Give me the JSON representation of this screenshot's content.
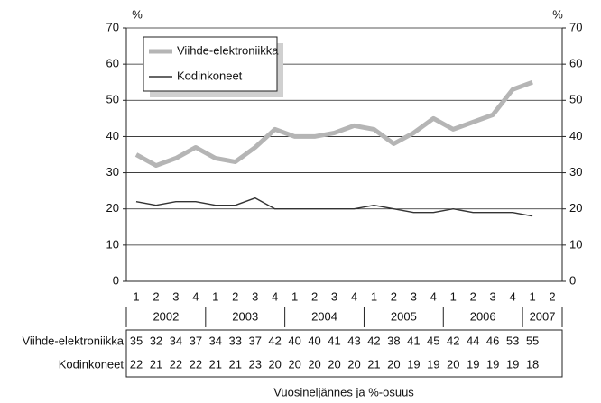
{
  "chart_data": {
    "type": "line",
    "y_unit": "%",
    "x_label": "Vuosineljännes ja %-osuus",
    "categories": [
      "1",
      "2",
      "3",
      "4",
      "1",
      "2",
      "3",
      "4",
      "1",
      "2",
      "3",
      "4",
      "1",
      "2",
      "3",
      "4",
      "1",
      "2",
      "3",
      "4",
      "1",
      "2"
    ],
    "years": [
      "2002",
      "2003",
      "2004",
      "2005",
      "2006",
      "2007"
    ],
    "series": [
      {
        "name": "Viihde-elektroniikka",
        "color": "#b5b5b5",
        "values": [
          35,
          32,
          34,
          37,
          34,
          33,
          37,
          42,
          40,
          40,
          41,
          43,
          42,
          38,
          41,
          45,
          42,
          44,
          46,
          53,
          55,
          null
        ]
      },
      {
        "name": "Kodinkoneet",
        "color": "#333333",
        "values": [
          22,
          21,
          22,
          22,
          21,
          21,
          23,
          20,
          20,
          20,
          20,
          20,
          21,
          20,
          19,
          19,
          20,
          19,
          19,
          19,
          18,
          null
        ]
      }
    ],
    "ylim": [
      0,
      70
    ],
    "yticks": [
      0,
      10,
      20,
      30,
      40,
      50,
      60,
      70
    ],
    "y2lim": [
      0,
      70
    ],
    "y2ticks": [
      0,
      10,
      20,
      30,
      40,
      50,
      60,
      70
    ],
    "grid": true,
    "legend": "upper left",
    "table": true
  }
}
